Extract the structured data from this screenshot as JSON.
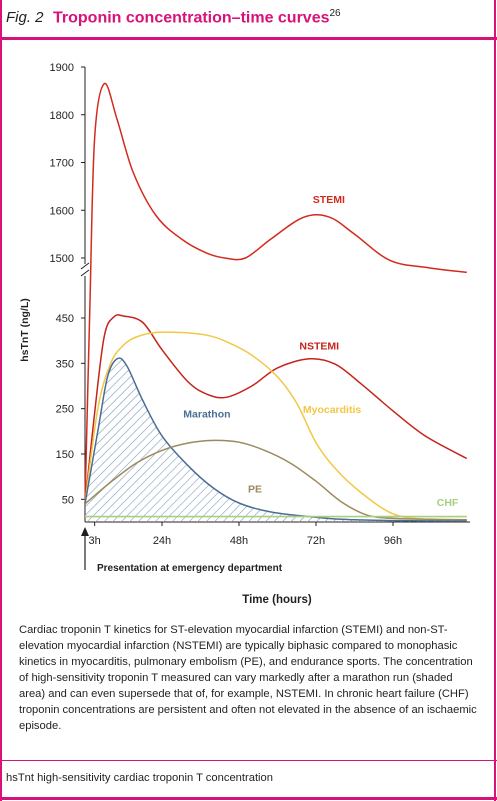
{
  "figure": {
    "label": "Fig. 2",
    "title": "Troponin concentration–time curves",
    "reference": "26"
  },
  "colors": {
    "accent": "#d8127a",
    "stemi": "#d42a1e",
    "nstemi": "#c4241a",
    "myocarditis": "#f2c744",
    "marathon": "#4a6e95",
    "pe": "#9b8a5c",
    "chf": "#a8cf7d"
  },
  "chart_data": {
    "type": "line",
    "xlabel": "Time (hours)",
    "ylabel": "hsTnT (ng/L)",
    "x_ticks": [
      {
        "value": 3,
        "label": "3h"
      },
      {
        "value": 24,
        "label": "24h"
      },
      {
        "value": 48,
        "label": "48h"
      },
      {
        "value": 72,
        "label": "72h"
      },
      {
        "value": 96,
        "label": "96h"
      }
    ],
    "y_ticks_lower": [
      50,
      150,
      250,
      350,
      450
    ],
    "y_ticks_upper": [
      1500,
      1600,
      1700,
      1800,
      1900
    ],
    "axis_break": "broken y-axis between 450 and 1500",
    "xlim": [
      0,
      120
    ],
    "annotation": "Presentation at emergency department",
    "series": [
      {
        "name": "STEMI",
        "color": "#d42a1e",
        "points": [
          [
            0,
            40
          ],
          [
            1.5,
            600
          ],
          [
            3,
            1750
          ],
          [
            6,
            1865
          ],
          [
            10,
            1790
          ],
          [
            15,
            1680
          ],
          [
            22,
            1590
          ],
          [
            30,
            1540
          ],
          [
            38,
            1510
          ],
          [
            44,
            1496
          ],
          [
            50,
            1500
          ],
          [
            58,
            1540
          ],
          [
            68,
            1585
          ],
          [
            76,
            1586
          ],
          [
            84,
            1550
          ],
          [
            95,
            1460
          ],
          [
            107,
            1330
          ],
          [
            119,
            1250
          ]
        ]
      },
      {
        "name": "NSTEMI",
        "color": "#c4241a",
        "points": [
          [
            0,
            40
          ],
          [
            3,
            240
          ],
          [
            6,
            410
          ],
          [
            9,
            470
          ],
          [
            12,
            485
          ],
          [
            18,
            440
          ],
          [
            24,
            380
          ],
          [
            32,
            310
          ],
          [
            38,
            282
          ],
          [
            44,
            275
          ],
          [
            52,
            300
          ],
          [
            60,
            340
          ],
          [
            70,
            360
          ],
          [
            78,
            348
          ],
          [
            86,
            305
          ],
          [
            96,
            245
          ],
          [
            106,
            190
          ],
          [
            119,
            140
          ]
        ]
      },
      {
        "name": "Myocarditis",
        "color": "#f2c744",
        "points": [
          [
            0,
            40
          ],
          [
            4,
            250
          ],
          [
            8,
            350
          ],
          [
            12,
            390
          ],
          [
            16,
            408
          ],
          [
            22,
            418
          ],
          [
            30,
            418
          ],
          [
            38,
            412
          ],
          [
            44,
            398
          ],
          [
            52,
            368
          ],
          [
            60,
            320
          ],
          [
            66,
            262
          ],
          [
            72,
            175
          ],
          [
            78,
            118
          ],
          [
            86,
            65
          ],
          [
            96,
            18
          ],
          [
            106,
            6
          ],
          [
            119,
            5
          ]
        ]
      },
      {
        "name": "Marathon",
        "color": "#4a6e95",
        "points": [
          [
            0,
            40
          ],
          [
            4,
            200
          ],
          [
            7,
            320
          ],
          [
            10,
            360
          ],
          [
            13,
            345
          ],
          [
            18,
            268
          ],
          [
            24,
            190
          ],
          [
            32,
            125
          ],
          [
            40,
            75
          ],
          [
            48,
            42
          ],
          [
            58,
            22
          ],
          [
            70,
            12
          ],
          [
            80,
            6
          ],
          [
            96,
            3
          ],
          [
            119,
            2
          ]
        ]
      },
      {
        "name": "PE",
        "color": "#9b8a5c",
        "points": [
          [
            0,
            40
          ],
          [
            8,
            88
          ],
          [
            16,
            130
          ],
          [
            24,
            158
          ],
          [
            32,
            174
          ],
          [
            40,
            180
          ],
          [
            48,
            176
          ],
          [
            56,
            158
          ],
          [
            64,
            130
          ],
          [
            72,
            90
          ],
          [
            80,
            44
          ],
          [
            88,
            15
          ],
          [
            96,
            8
          ],
          [
            108,
            6
          ],
          [
            119,
            5
          ]
        ]
      },
      {
        "name": "CHF",
        "color": "#a8cf7d",
        "points": [
          [
            0,
            12
          ],
          [
            119,
            12
          ]
        ]
      }
    ],
    "shaded_area": "Marathon",
    "labels": [
      {
        "series": "STEMI",
        "text": "STEMI",
        "x": 76,
        "y": 1615
      },
      {
        "series": "NSTEMI",
        "text": "NSTEMI",
        "x": 73,
        "y": 380
      },
      {
        "series": "Myocarditis",
        "text": "Myocarditis",
        "x": 77,
        "y": 240
      },
      {
        "series": "Marathon",
        "text": "Marathon",
        "x": 38,
        "y": 230
      },
      {
        "series": "PE",
        "text": "PE",
        "x": 53,
        "y": 65
      },
      {
        "series": "CHF",
        "text": "CHF",
        "x": 113,
        "y": 35
      }
    ]
  },
  "caption": "Cardiac troponin T kinetics for ST-elevation myocardial infarction (STEMI) and non-ST-elevation myocardial infarction (NSTEMI) are typically biphasic compared to monophasic kinetics in myocarditis, pulmonary embolism (PE), and endurance sports. The concentration of high-sensitivity troponin T measured can vary markedly after a marathon run (shaded area) and can even supersede that of, for example, NSTEMI. In chronic heart failure (CHF) troponin concentrations are persistent and often not elevated in the absence of an ischaemic episode.",
  "footnote": "hsTnt  high-sensitivity cardiac troponin T concentration"
}
